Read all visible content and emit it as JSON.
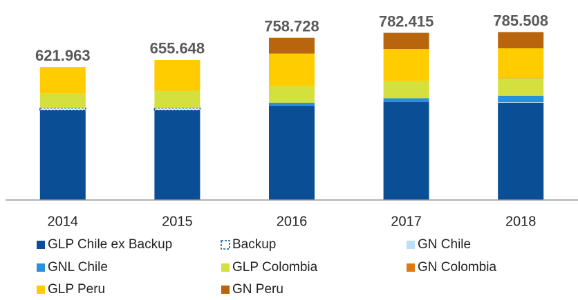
{
  "chart_data": {
    "type": "stacked_bar",
    "categories": [
      "2014",
      "2015",
      "2016",
      "2017",
      "2018"
    ],
    "series": [
      {
        "name": "GLP Chile ex Backup",
        "color": "#0a4f96",
        "values": [
          420000,
          420000,
          440000,
          458000,
          455000
        ]
      },
      {
        "name": "Backup",
        "color": "#0a4f96",
        "pattern": "dashed",
        "values": [
          10000,
          10000,
          0,
          0,
          0
        ]
      },
      {
        "name": "GN Chile",
        "color": "#bde0f7",
        "values": [
          0,
          0,
          0,
          0,
          3000
        ]
      },
      {
        "name": "GNL Chile",
        "color": "#2b8fe0",
        "values": [
          0,
          0,
          15000,
          18000,
          30000
        ]
      },
      {
        "name": "GLP Colombia",
        "color": "#d4e03d",
        "values": [
          68000,
          80000,
          78000,
          80000,
          82000
        ]
      },
      {
        "name": "GN Colombia",
        "color": "#e07a10",
        "values": [
          0,
          0,
          0,
          0,
          2000
        ]
      },
      {
        "name": "GLP Peru",
        "color": "#ffcc00",
        "values": [
          124000,
          145000,
          152000,
          150000,
          137500
        ]
      },
      {
        "name": "GN Peru",
        "color": "#b8650e",
        "values": [
          0,
          0,
          74000,
          76000,
          76000
        ]
      }
    ],
    "totals": [
      621963,
      655648,
      758728,
      782415,
      785508
    ],
    "value_labels": [
      "621.963",
      "655.648",
      "758.728",
      "782.415",
      "785.508"
    ],
    "ylim": [
      0,
      900000
    ]
  }
}
